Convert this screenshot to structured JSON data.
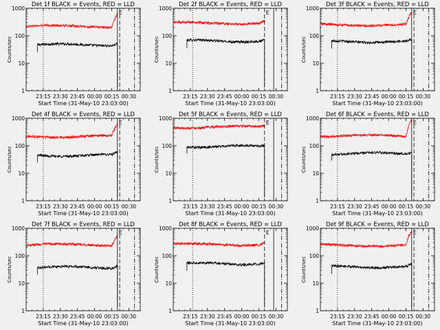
{
  "figure": {
    "background": "#f0f0f0",
    "events_color": "#000000",
    "lld_color": "#ff0000"
  },
  "chart_data": [
    {
      "type": "line",
      "title": "Det 1f BLACK = Events, RED = LLD",
      "xlabel": "Start Time (31-May-10 23:03:00)",
      "ylabel": "Counts/sec",
      "yscale": "log",
      "ylim": [
        1,
        1000
      ],
      "xticks": [
        "23:15",
        "23:30",
        "23:45",
        "00:00",
        "00:15",
        "00:30"
      ],
      "yticks": [
        "1",
        "10",
        "100",
        "1000"
      ],
      "annotation": "E",
      "series": [
        {
          "role": "events",
          "x_start": "23:10",
          "x_end": "00:20",
          "level": 47,
          "tail_peak": 55
        },
        {
          "role": "lld",
          "x_start": "23:00",
          "x_end": "00:20",
          "level": 220,
          "tail_peak": 600
        }
      ],
      "vlines": [
        {
          "x": "23:15",
          "style": "dotted"
        },
        {
          "x": "00:20",
          "style": "solid"
        },
        {
          "x": "00:22",
          "style": "dashed"
        },
        {
          "x": "00:35",
          "style": "dash-dot"
        }
      ]
    },
    {
      "type": "line",
      "title": "Det 2f BLACK = Events, RED = LLD",
      "xlabel": "Start Time (31-May-10 23:03:00)",
      "ylabel": "Counts/sec",
      "yscale": "log",
      "ylim": [
        1,
        1000
      ],
      "xticks": [
        "23:15",
        "23:30",
        "23:45",
        "00:00",
        "00:15",
        "00:30"
      ],
      "yticks": [
        "1",
        "10",
        "100",
        "1000"
      ],
      "annotation": "E",
      "series": [
        {
          "role": "events",
          "x_start": "23:12",
          "x_end": "00:20",
          "level": 65,
          "tail_peak": 70
        },
        {
          "role": "lld",
          "x_start": "23:00",
          "x_end": "00:20",
          "level": 290,
          "tail_peak": 350
        }
      ],
      "vlines": [
        {
          "x": "23:17",
          "style": "dotted"
        },
        {
          "x": "00:20",
          "style": "dashed"
        },
        {
          "x": "00:28",
          "style": "solid"
        },
        {
          "x": "00:35",
          "style": "dash-dot"
        }
      ]
    },
    {
      "type": "line",
      "title": "Det 3f BLACK = Events, RED = LLD",
      "xlabel": "Start Time (31-May-10 23:03:00)",
      "ylabel": "Counts/sec",
      "yscale": "log",
      "ylim": [
        1,
        1000
      ],
      "xticks": [
        "23:15",
        "23:30",
        "23:45",
        "00:00",
        "00:15",
        "00:30"
      ],
      "yticks": [
        "1",
        "10",
        "100",
        "1000"
      ],
      "annotation": "E",
      "series": [
        {
          "role": "events",
          "x_start": "23:10",
          "x_end": "00:20",
          "level": 62,
          "tail_peak": 70
        },
        {
          "role": "lld",
          "x_start": "23:00",
          "x_end": "00:20",
          "level": 250,
          "tail_peak": 700
        }
      ],
      "vlines": [
        {
          "x": "23:15",
          "style": "dotted"
        },
        {
          "x": "00:20",
          "style": "solid"
        },
        {
          "x": "00:22",
          "style": "dashed"
        },
        {
          "x": "00:35",
          "style": "dash-dot"
        }
      ]
    },
    {
      "type": "line",
      "title": "Det 4f BLACK = Events, RED = LLD",
      "xlabel": "Start Time (31-May-10 23:03:00)",
      "ylabel": "Counts/sec",
      "yscale": "log",
      "ylim": [
        1,
        1000
      ],
      "xticks": [
        "23:15",
        "23:30",
        "23:45",
        "00:00",
        "00:15",
        "00:30"
      ],
      "yticks": [
        "1",
        "10",
        "100",
        "1000"
      ],
      "annotation": "E",
      "series": [
        {
          "role": "events",
          "x_start": "23:10",
          "x_end": "00:20",
          "level": 45,
          "tail_peak": 55
        },
        {
          "role": "lld",
          "x_start": "23:00",
          "x_end": "00:20",
          "level": 220,
          "tail_peak": 600
        }
      ],
      "vlines": [
        {
          "x": "23:15",
          "style": "dotted"
        },
        {
          "x": "00:20",
          "style": "solid"
        },
        {
          "x": "00:22",
          "style": "dashed"
        },
        {
          "x": "00:35",
          "style": "dash-dot"
        }
      ]
    },
    {
      "type": "line",
      "title": "Det 5f BLACK = Events, RED = LLD",
      "xlabel": "Start Time (31-May-10 23:03:00)",
      "ylabel": "Counts/sec",
      "yscale": "log",
      "ylim": [
        1,
        1000
      ],
      "xticks": [
        "23:15",
        "23:30",
        "23:45",
        "00:00",
        "00:15",
        "00:30"
      ],
      "yticks": [
        "1",
        "10",
        "100",
        "1000"
      ],
      "annotation": "E",
      "series": [
        {
          "role": "events",
          "x_start": "23:12",
          "x_end": "00:20",
          "level": 95,
          "tail_peak": 100
        },
        {
          "role": "lld",
          "x_start": "23:00",
          "x_end": "00:20",
          "level": 480,
          "tail_peak": 520
        }
      ],
      "vlines": [
        {
          "x": "23:17",
          "style": "dotted"
        },
        {
          "x": "00:20",
          "style": "dashed"
        },
        {
          "x": "00:28",
          "style": "solid"
        },
        {
          "x": "00:35",
          "style": "dash-dot"
        }
      ]
    },
    {
      "type": "line",
      "title": "Det 6f BLACK = Events, RED = LLD",
      "xlabel": "Start Time (31-May-10 23:03:00)",
      "ylabel": "Counts/sec",
      "yscale": "log",
      "ylim": [
        1,
        1000
      ],
      "xticks": [
        "23:15",
        "23:30",
        "23:45",
        "00:00",
        "00:15",
        "00:30"
      ],
      "yticks": [
        "1",
        "10",
        "100",
        "1000"
      ],
      "annotation": "E",
      "series": [
        {
          "role": "events",
          "x_start": "23:10",
          "x_end": "00:20",
          "level": 52,
          "tail_peak": 60
        },
        {
          "role": "lld",
          "x_start": "23:00",
          "x_end": "00:20",
          "level": 230,
          "tail_peak": 900
        }
      ],
      "vlines": [
        {
          "x": "23:15",
          "style": "dotted"
        },
        {
          "x": "00:20",
          "style": "solid"
        },
        {
          "x": "00:22",
          "style": "dashed"
        },
        {
          "x": "00:35",
          "style": "dash-dot"
        }
      ]
    },
    {
      "type": "line",
      "title": "Det 7f BLACK = Events, RED = LLD",
      "xlabel": "Start Time (31-May-10 23:03:00)",
      "ylabel": "Counts/sec",
      "yscale": "log",
      "ylim": [
        1,
        1000
      ],
      "xticks": [
        "23:15",
        "23:30",
        "23:45",
        "00:00",
        "00:15",
        "00:30"
      ],
      "yticks": [
        "1",
        "10",
        "100",
        "1000"
      ],
      "annotation": "E",
      "series": [
        {
          "role": "events",
          "x_start": "23:10",
          "x_end": "00:20",
          "level": 38,
          "tail_peak": 45
        },
        {
          "role": "lld",
          "x_start": "23:00",
          "x_end": "00:20",
          "level": 250,
          "tail_peak": 550
        }
      ],
      "vlines": [
        {
          "x": "23:15",
          "style": "dotted"
        },
        {
          "x": "00:20",
          "style": "solid"
        },
        {
          "x": "00:22",
          "style": "dashed"
        },
        {
          "x": "00:35",
          "style": "dash-dot"
        }
      ]
    },
    {
      "type": "line",
      "title": "Det 8f BLACK = Events, RED = LLD",
      "xlabel": "Start Time (31-May-10 23:03:00)",
      "ylabel": "Counts/sec",
      "yscale": "log",
      "ylim": [
        1,
        1000
      ],
      "xticks": [
        "23:15",
        "23:30",
        "23:45",
        "00:00",
        "00:15",
        "00:30"
      ],
      "yticks": [
        "1",
        "10",
        "100",
        "1000"
      ],
      "annotation": "E",
      "series": [
        {
          "role": "events",
          "x_start": "23:12",
          "x_end": "00:20",
          "level": 52,
          "tail_peak": 58
        },
        {
          "role": "lld",
          "x_start": "23:00",
          "x_end": "00:20",
          "level": 260,
          "tail_peak": 300
        }
      ],
      "vlines": [
        {
          "x": "23:17",
          "style": "dotted"
        },
        {
          "x": "00:20",
          "style": "dashed"
        },
        {
          "x": "00:28",
          "style": "solid"
        },
        {
          "x": "00:35",
          "style": "dash-dot"
        }
      ]
    },
    {
      "type": "line",
      "title": "Det 9f BLACK = Events, RED = LLD",
      "xlabel": "Start Time (31-May-10 23:03:00)",
      "ylabel": "Counts/sec",
      "yscale": "log",
      "ylim": [
        1,
        1000
      ],
      "xticks": [
        "23:15",
        "23:30",
        "23:45",
        "00:00",
        "00:15",
        "00:30"
      ],
      "yticks": [
        "1",
        "10",
        "100",
        "1000"
      ],
      "annotation": "E",
      "series": [
        {
          "role": "events",
          "x_start": "23:10",
          "x_end": "00:20",
          "level": 40,
          "tail_peak": 50
        },
        {
          "role": "lld",
          "x_start": "23:00",
          "x_end": "00:20",
          "level": 240,
          "tail_peak": 800
        }
      ],
      "vlines": [
        {
          "x": "23:15",
          "style": "dotted"
        },
        {
          "x": "00:20",
          "style": "solid"
        },
        {
          "x": "00:22",
          "style": "dashed"
        },
        {
          "x": "00:35",
          "style": "dash-dot"
        }
      ]
    }
  ]
}
